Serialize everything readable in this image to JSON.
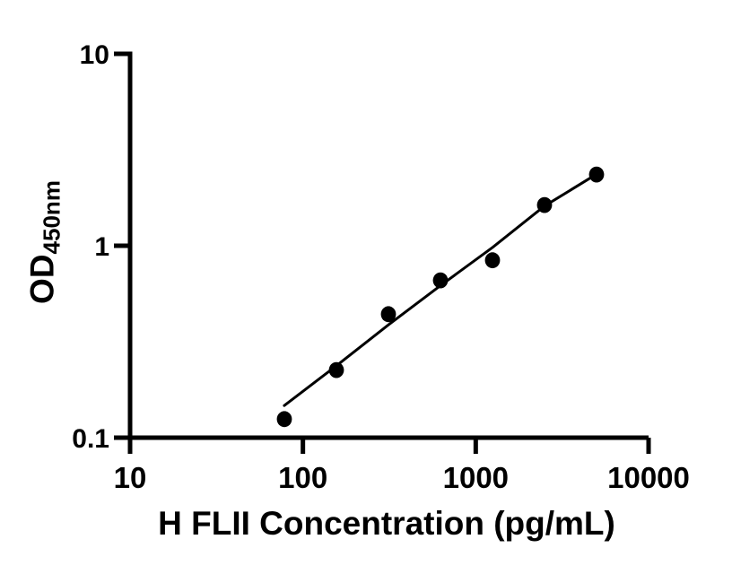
{
  "figure": {
    "background_color": "#ffffff",
    "foreground_color": "#000000"
  },
  "chart_data": {
    "type": "scatter",
    "title": "",
    "xlabel": "H FLII Concentration (pg/mL)",
    "ylabel_main": "OD",
    "ylabel_sub": "450nm",
    "x_scale": "log",
    "y_scale": "log",
    "xlim": [
      10,
      10000
    ],
    "ylim": [
      0.1,
      10
    ],
    "grid": false,
    "legend": "none",
    "marker_color": "#000000",
    "line_color": "#000000",
    "x_ticks": [
      {
        "value": 10,
        "label": "10"
      },
      {
        "value": 100,
        "label": "100"
      },
      {
        "value": 1000,
        "label": "1000"
      },
      {
        "value": 10000,
        "label": "10000"
      }
    ],
    "y_ticks": [
      {
        "value": 10,
        "label": "10"
      },
      {
        "value": 1,
        "label": "1"
      },
      {
        "value": 0.1,
        "label": "0.1"
      }
    ],
    "series": [
      {
        "name": "standard-points",
        "render": "markers",
        "x": [
          78.1,
          156.3,
          312.5,
          625,
          1250,
          2500,
          5000
        ],
        "y": [
          0.125,
          0.225,
          0.44,
          0.66,
          0.84,
          1.63,
          2.35
        ]
      },
      {
        "name": "fit-line",
        "render": "line",
        "x": [
          78,
          156.3,
          312.5,
          625,
          1250,
          2500,
          5000
        ],
        "y": [
          0.147,
          0.237,
          0.387,
          0.62,
          0.98,
          1.61,
          2.36
        ]
      }
    ]
  }
}
